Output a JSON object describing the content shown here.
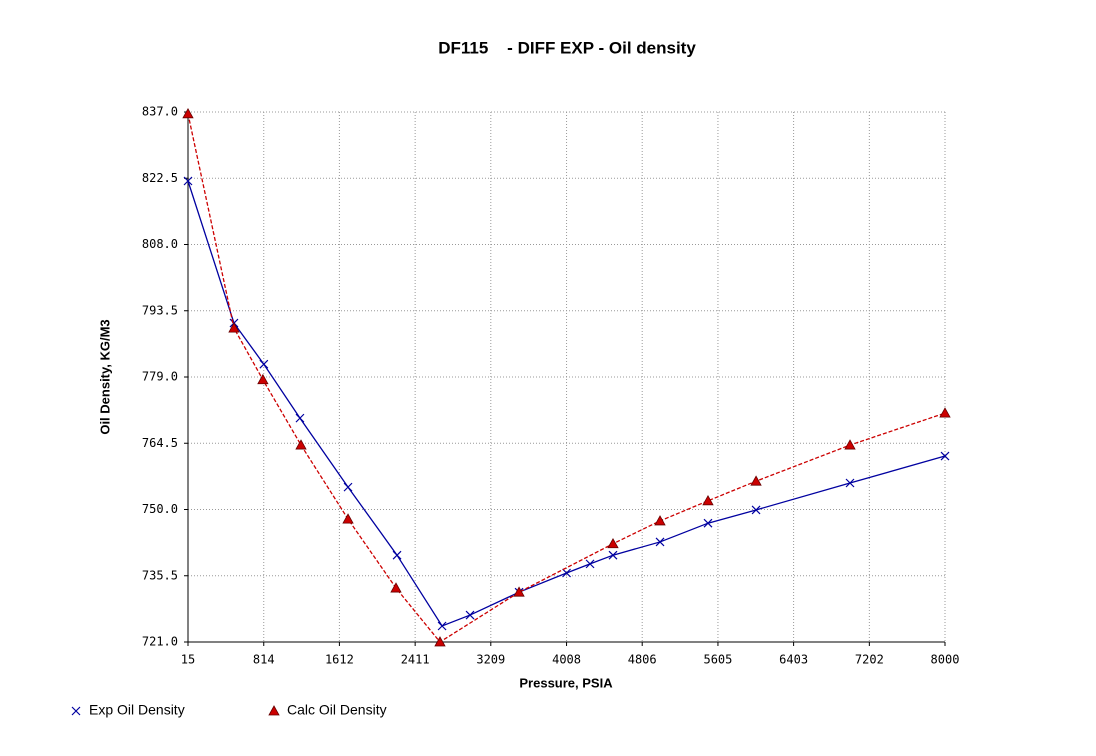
{
  "chart_data": {
    "type": "line",
    "title": "DF115    - DIFF EXP - Oil density",
    "x_label": "Pressure, PSIA",
    "y_label": "Oil Density,  KG/M3",
    "xlim": [
      15,
      8000
    ],
    "xticks": [
      15,
      814,
      1612,
      2411,
      3209,
      4008,
      4806,
      5605,
      6403,
      7202,
      8000
    ],
    "ylim": [
      721,
      837
    ],
    "yticks": [
      {
        "value": 721,
        "label": "721.0"
      },
      {
        "value": 735.5,
        "label": "735.5"
      },
      {
        "value": 750,
        "label": "750.0"
      },
      {
        "value": 764.5,
        "label": "764.5"
      },
      {
        "value": 779,
        "label": "779.0"
      },
      {
        "value": 793.5,
        "label": "793.5"
      },
      {
        "value": 808,
        "label": "808.0"
      },
      {
        "value": 822.5,
        "label": "822.5"
      },
      {
        "value": 837,
        "label": "837.0"
      }
    ],
    "grid": true,
    "series": [
      {
        "name": "Exp Oil Density",
        "color": "#0000a0",
        "marker": "x",
        "dash": false,
        "x": [
          15,
          500,
          815,
          1196,
          1703,
          2220,
          2695,
          2990,
          3507,
          4008,
          4256,
          4498,
          4994,
          5500,
          6007,
          6998,
          8000
        ],
        "values": [
          821.9,
          790.8,
          781.8,
          770.0,
          754.9,
          740.0,
          724.5,
          726.9,
          731.9,
          736.1,
          738.1,
          740.0,
          742.9,
          747.0,
          749.9,
          755.8,
          761.7
        ]
      },
      {
        "name": "Calc Oil Density",
        "color": "#cc0000",
        "marker": "triangle",
        "dash": true,
        "x": [
          15,
          500,
          805,
          1207,
          1703,
          2209,
          2673,
          3507,
          4498,
          4994,
          5500,
          6007,
          6998,
          8000
        ],
        "values": [
          836.6,
          789.7,
          778.4,
          764.1,
          747.9,
          732.8,
          721.0,
          731.9,
          742.5,
          747.5,
          751.9,
          756.2,
          764.1,
          771.1
        ]
      }
    ]
  }
}
